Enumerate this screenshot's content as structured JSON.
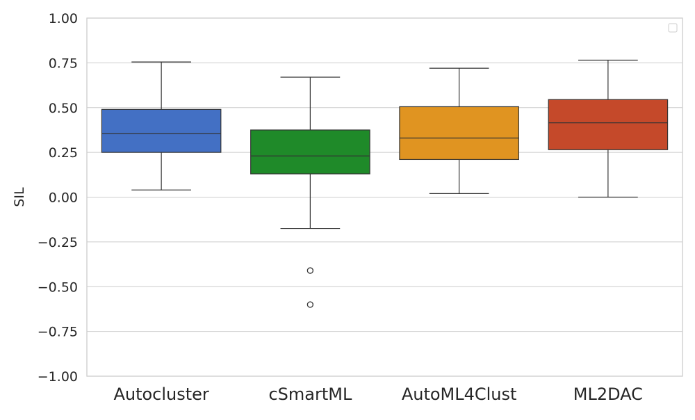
{
  "chart_data": {
    "type": "box",
    "ylabel": "SIL",
    "ylim": [
      -1.0,
      1.0
    ],
    "yticks": [
      -1.0,
      -0.75,
      -0.5,
      -0.25,
      0.0,
      0.25,
      0.5,
      0.75,
      1.0
    ],
    "ytick_labels": [
      "−1.00",
      "−0.75",
      "−0.50",
      "−0.25",
      "0.00",
      "0.25",
      "0.50",
      "0.75",
      "1.00"
    ],
    "grid": "horizontal",
    "legend": "top-right (empty)",
    "categories": [
      "Autocluster",
      "cSmartML",
      "AutoML4Clust",
      "ML2DAC"
    ],
    "boxes": [
      {
        "label": "Autocluster",
        "color": "#4370c4",
        "whisker_low": 0.04,
        "q1": 0.25,
        "median": 0.355,
        "q3": 0.49,
        "whisker_high": 0.755,
        "outliers": []
      },
      {
        "label": "cSmartML",
        "color": "#1f8a29",
        "whisker_low": -0.175,
        "q1": 0.13,
        "median": 0.23,
        "q3": 0.375,
        "whisker_high": 0.67,
        "outliers": [
          -0.41,
          -0.6
        ]
      },
      {
        "label": "AutoML4Clust",
        "color": "#e09421",
        "whisker_low": 0.02,
        "q1": 0.21,
        "median": 0.33,
        "q3": 0.505,
        "whisker_high": 0.72,
        "outliers": []
      },
      {
        "label": "ML2DAC",
        "color": "#c5492a",
        "whisker_low": 0.0,
        "q1": 0.265,
        "median": 0.415,
        "q3": 0.545,
        "whisker_high": 0.765,
        "outliers": []
      }
    ]
  }
}
